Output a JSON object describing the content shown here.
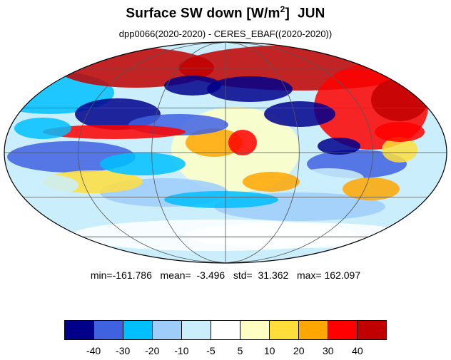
{
  "title": {
    "main": "Surface SW down [W/m",
    "sup": "2",
    "close": "]",
    "month": "JUN"
  },
  "subtitle": "dpp0066(2020-2020) - CERES_EBAF((2020-2020))",
  "stats": {
    "text": "min=-161.786   mean=  -3.496   std=  31.362   max= 162.097"
  },
  "colorbar": {
    "colors": [
      "#00008b",
      "#3f62e0",
      "#00bfff",
      "#9fcdfa",
      "#cbeefc",
      "#ffffff",
      "#ffffc4",
      "#ffde3c",
      "#ffa600",
      "#ff0000",
      "#c10000"
    ],
    "tick_labels": [
      "-40",
      "-30",
      "-20",
      "-10",
      "-5",
      "5",
      "10",
      "20",
      "30",
      "40"
    ]
  },
  "map": {
    "projection": "Mollweide"
  }
}
